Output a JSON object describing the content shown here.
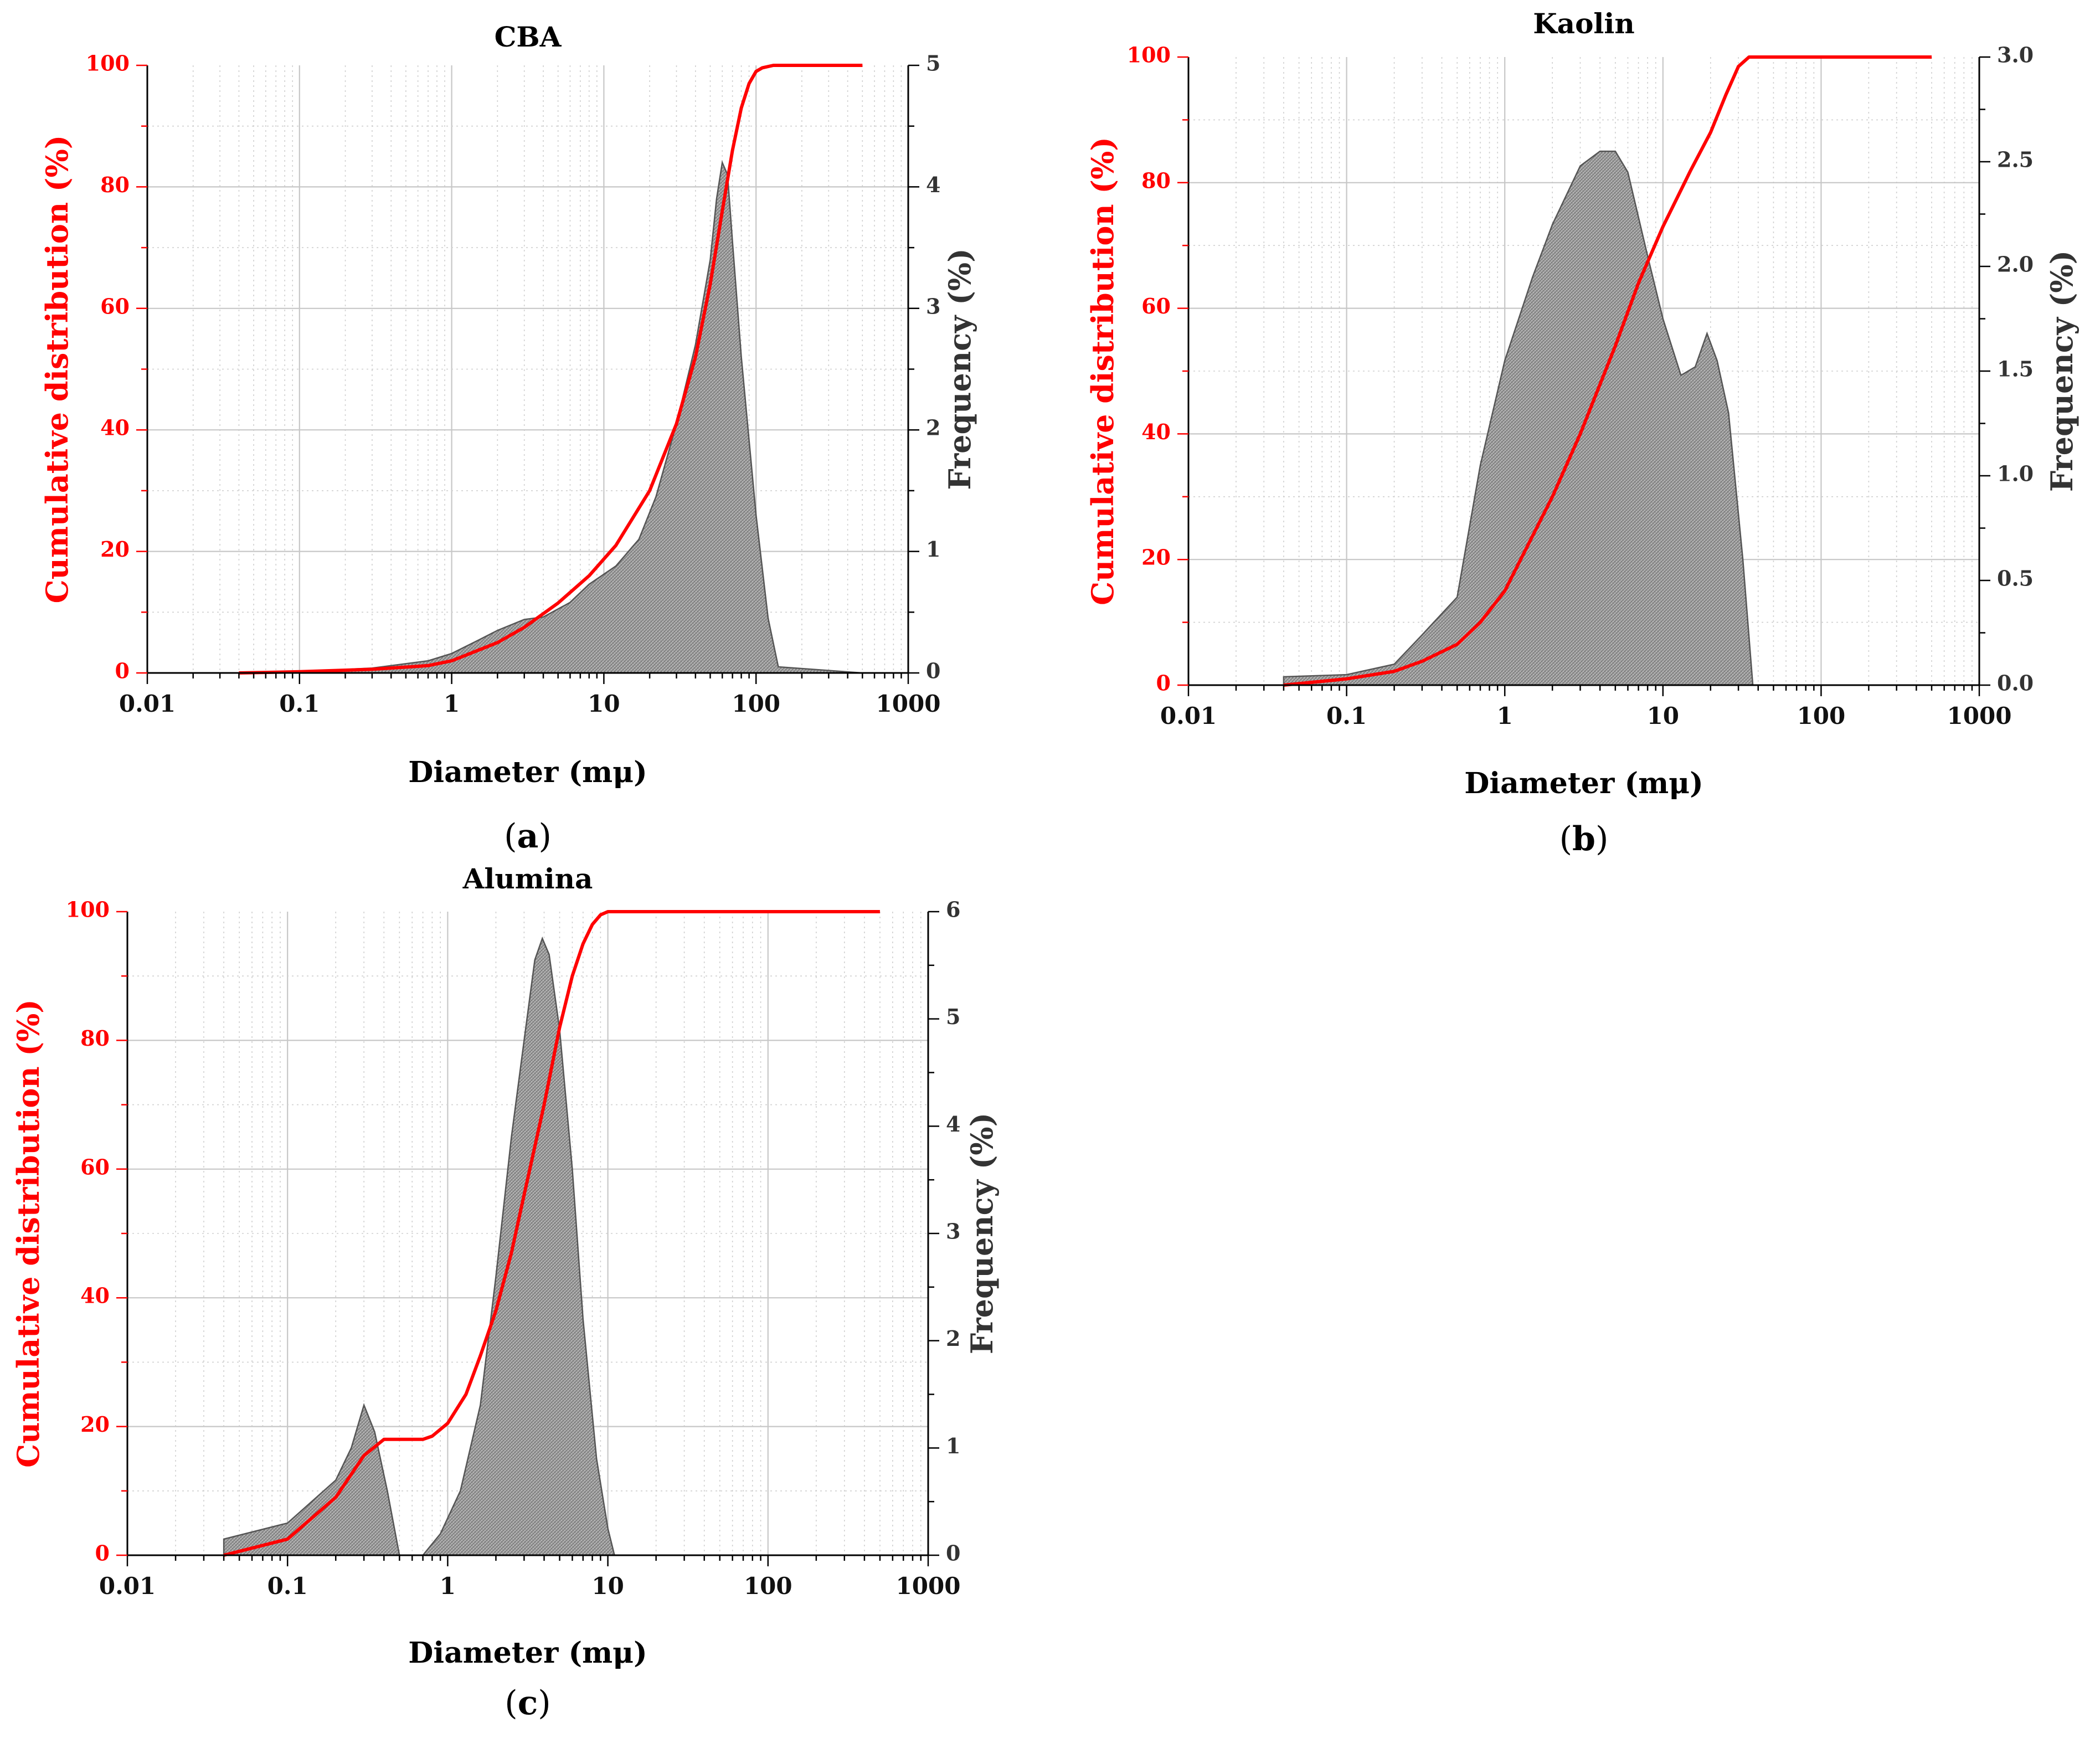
{
  "figure": {
    "x_axis_ticks": [
      "0.01",
      "0.1",
      "1",
      "10",
      "100",
      "1000"
    ],
    "left_ticks": [
      "0",
      "20",
      "40",
      "60",
      "80",
      "100"
    ]
  },
  "chart_data": [
    {
      "type": "area+line",
      "title": "CBA",
      "panel_label": "(a)",
      "panel_letter": "a",
      "xlabel": "Diameter (mμ)",
      "ylabel_left": "Cumulative distribution (%)",
      "ylabel_right": "Frequency (%)",
      "xscale": "log",
      "xlim": [
        0.01,
        1000
      ],
      "ylim_left": [
        0,
        100
      ],
      "ylim_right": [
        0,
        5
      ],
      "right_ticks": [
        "0",
        "1",
        "2",
        "3",
        "4",
        "5"
      ],
      "grid": true,
      "frequency": {
        "x": [
          0.04,
          0.1,
          0.3,
          0.7,
          1.0,
          1.5,
          2.0,
          3.0,
          4.0,
          6.0,
          8.0,
          12.0,
          17.0,
          22.0,
          30.0,
          40.0,
          50.0,
          55.0,
          60.0,
          65.0,
          70.0,
          80.0,
          100.0,
          120.0,
          140.0,
          500.0
        ],
        "y": [
          0.0,
          0.01,
          0.04,
          0.1,
          0.16,
          0.27,
          0.35,
          0.44,
          0.46,
          0.58,
          0.73,
          0.88,
          1.1,
          1.45,
          2.05,
          2.7,
          3.4,
          3.9,
          4.2,
          4.1,
          3.55,
          2.6,
          1.3,
          0.45,
          0.05,
          0.0
        ]
      },
      "cumulative": {
        "x": [
          0.04,
          0.1,
          0.3,
          0.7,
          1.0,
          2.0,
          3.0,
          5.0,
          8.0,
          12.0,
          20.0,
          30.0,
          40.0,
          50.0,
          60.0,
          70.0,
          80.0,
          90.0,
          100.0,
          110.0,
          130.0,
          500.0
        ],
        "y": [
          0.0,
          0.2,
          0.6,
          1.2,
          2.0,
          5.0,
          7.5,
          11.5,
          16.0,
          21.0,
          30.0,
          41.0,
          52.0,
          64.0,
          76.0,
          86.0,
          93.0,
          97.0,
          99.0,
          99.6,
          100.0,
          100.0
        ]
      }
    },
    {
      "type": "area+line",
      "title": "Kaolin",
      "panel_label": "(b)",
      "panel_letter": "b",
      "xlabel": "Diameter (mμ)",
      "ylabel_left": "Cumulative distribution (%)",
      "ylabel_right": "Frequency (%)",
      "xscale": "log",
      "xlim": [
        0.01,
        1000
      ],
      "ylim_left": [
        0,
        100
      ],
      "ylim_right": [
        0,
        3.0
      ],
      "right_ticks": [
        "0.0",
        "0.5",
        "1.0",
        "1.5",
        "2.0",
        "2.5",
        "3.0"
      ],
      "grid": true,
      "frequency": {
        "x": [
          0.04,
          0.1,
          0.2,
          0.3,
          0.5,
          0.7,
          1.0,
          1.5,
          2.0,
          3.0,
          4.0,
          5.0,
          6.0,
          8.0,
          10.0,
          13.0,
          16.0,
          19.0,
          22.0,
          26.0,
          32.0,
          37.0,
          500.0
        ],
        "y": [
          0.04,
          0.05,
          0.1,
          0.24,
          0.42,
          1.05,
          1.55,
          1.95,
          2.2,
          2.48,
          2.55,
          2.55,
          2.45,
          2.05,
          1.75,
          1.48,
          1.52,
          1.68,
          1.55,
          1.3,
          0.6,
          0.0,
          0.0
        ]
      },
      "cumulative": {
        "x": [
          0.04,
          0.1,
          0.2,
          0.3,
          0.5,
          0.7,
          1.0,
          2.0,
          3.0,
          5.0,
          7.0,
          10.0,
          15.0,
          20.0,
          25.0,
          30.0,
          35.0,
          40.0,
          500.0
        ],
        "y": [
          0.0,
          1.0,
          2.2,
          3.8,
          6.5,
          10.0,
          15.0,
          30.0,
          40.0,
          54.0,
          64.0,
          73.0,
          82.0,
          88.0,
          94.0,
          98.5,
          100.0,
          100.0,
          100.0
        ]
      }
    },
    {
      "type": "area+line",
      "title": "Alumina",
      "panel_label": "(c)",
      "panel_letter": "c",
      "xlabel": "Diameter (mμ)",
      "ylabel_left": "Cumulative distribution (%)",
      "ylabel_right": "Frequency (%)",
      "xscale": "log",
      "xlim": [
        0.01,
        1000
      ],
      "ylim_left": [
        0,
        100
      ],
      "ylim_right": [
        0,
        6
      ],
      "right_ticks": [
        "0",
        "1",
        "2",
        "3",
        "4",
        "5",
        "6"
      ],
      "grid": true,
      "frequency": {
        "x": [
          0.04,
          0.1,
          0.2,
          0.25,
          0.3,
          0.35,
          0.42,
          0.5,
          0.7,
          0.9,
          1.2,
          1.6,
          2.0,
          2.5,
          3.0,
          3.5,
          3.9,
          4.3,
          5.0,
          6.0,
          7.0,
          8.5,
          10.0,
          11.0,
          500.0
        ],
        "y": [
          0.15,
          0.3,
          0.7,
          1.0,
          1.4,
          1.15,
          0.6,
          0.0,
          0.0,
          0.2,
          0.6,
          1.4,
          2.6,
          3.9,
          4.8,
          5.55,
          5.75,
          5.6,
          4.9,
          3.6,
          2.2,
          0.9,
          0.25,
          0.0,
          0.0
        ]
      },
      "cumulative": {
        "x": [
          0.04,
          0.1,
          0.2,
          0.3,
          0.4,
          0.5,
          0.7,
          0.8,
          1.0,
          1.3,
          1.6,
          2.0,
          2.5,
          3.0,
          4.0,
          5.0,
          6.0,
          7.0,
          8.0,
          9.0,
          10.0,
          500.0
        ],
        "y": [
          0.0,
          2.5,
          9.0,
          15.5,
          18.0,
          18.0,
          18.0,
          18.5,
          20.5,
          25.0,
          31.0,
          38.0,
          47.0,
          56.0,
          70.0,
          82.0,
          90.0,
          95.0,
          98.0,
          99.5,
          100.0,
          100.0
        ]
      }
    }
  ]
}
